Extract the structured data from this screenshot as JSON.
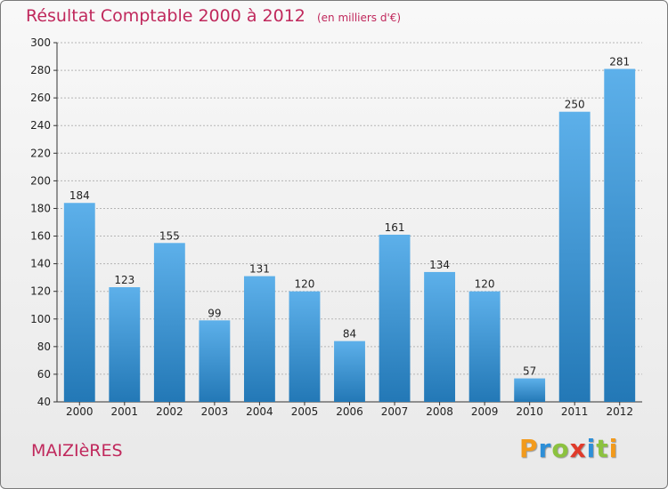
{
  "header": {
    "title": "Résultat Comptable 2000 à 2012",
    "unit": "(en milliers d'€)"
  },
  "footer": {
    "commune": "MAIZIèRES",
    "brand": "Proxiti"
  },
  "colors": {
    "title": "#c0285c",
    "bar_top": "#5db0ea",
    "bar_bottom": "#2378b6",
    "grid": "#b5b5b5",
    "brand_letters": [
      "#f29a1c",
      "#2d8fd8",
      "#8cc23f",
      "#e03b2b",
      "#2d8fd8",
      "#8cc23f",
      "#f29a1c"
    ]
  },
  "chart_data": {
    "type": "bar",
    "title": "Résultat Comptable 2000 à 2012",
    "subtitle": "(en milliers d'€)",
    "categories": [
      "2000",
      "2001",
      "2002",
      "2003",
      "2004",
      "2005",
      "2006",
      "2007",
      "2008",
      "2009",
      "2010",
      "2011",
      "2012"
    ],
    "values": [
      184,
      123,
      155,
      99,
      131,
      120,
      84,
      161,
      134,
      120,
      57,
      250,
      281
    ],
    "value_labels": [
      "184",
      "123",
      "155",
      "99",
      "131",
      "120",
      "84",
      "161",
      "134",
      "120",
      "57",
      "250",
      "281"
    ],
    "y_ticks": [
      40,
      60,
      80,
      100,
      120,
      140,
      160,
      180,
      200,
      220,
      240,
      260,
      280,
      300
    ],
    "y_tick_labels": [
      "40",
      "60",
      "80",
      "100",
      "120",
      "140",
      "160",
      "180",
      "200",
      "220",
      "240",
      "260",
      "280",
      "300"
    ],
    "ylim": [
      40,
      300
    ],
    "grid": true,
    "legend": "none"
  }
}
